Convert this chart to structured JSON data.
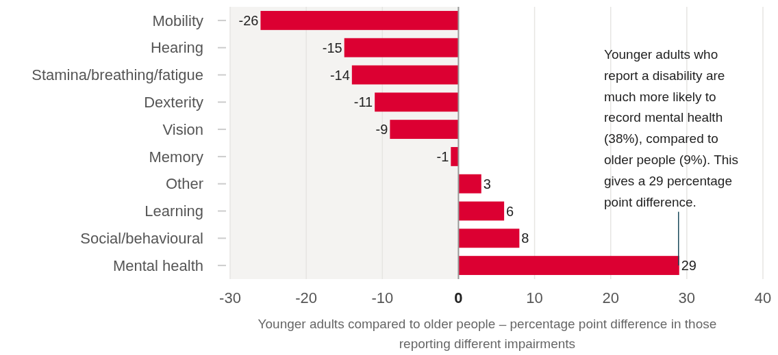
{
  "chart_data": {
    "type": "bar",
    "orientation": "horizontal",
    "xlabel": "Younger adults compared to older people – percentage point difference in those reporting different impairments",
    "categories": [
      "Mobility",
      "Hearing",
      "Stamina/breathing/fatigue",
      "Dexterity",
      "Vision",
      "Memory",
      "Other",
      "Learning",
      "Social/behavioural",
      "Mental health"
    ],
    "values": [
      -26,
      -15,
      -14,
      -11,
      -9,
      -1,
      3,
      6,
      8,
      29
    ],
    "color": "#dc0032",
    "data_labels": true,
    "xlim": [
      -30,
      40
    ],
    "xticks": [
      -30,
      -20,
      -10,
      0,
      10,
      20,
      30,
      40
    ],
    "grid": "x",
    "bands": [
      {
        "axis": "x",
        "from": -30,
        "to": 0,
        "color": "#f4f3f1"
      }
    ],
    "annotations": [
      {
        "text": "Younger adults who report a disability are much more likely to record mental health (38%), compared to older people (9%). This gives a 29 percentage point difference.",
        "x": 29,
        "y": "Mental health"
      }
    ]
  }
}
